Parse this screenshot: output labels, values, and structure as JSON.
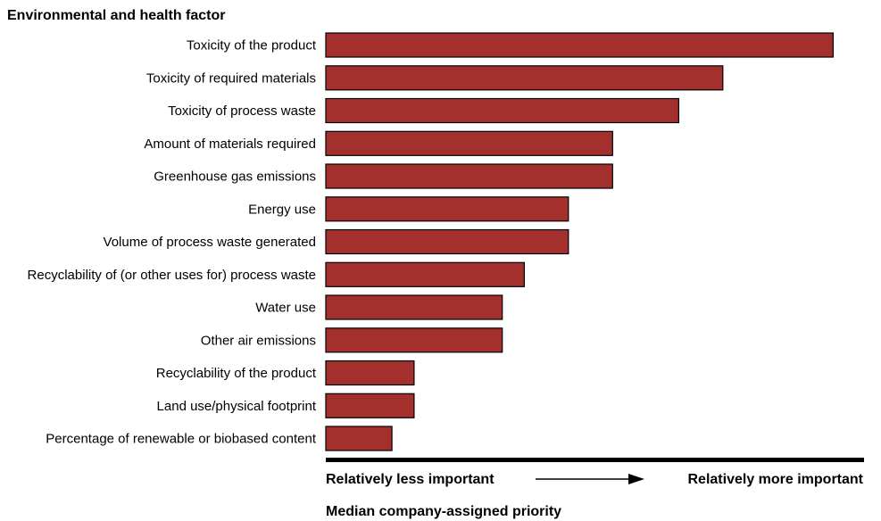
{
  "chart_data": {
    "type": "bar",
    "orientation": "horizontal",
    "title": "Environmental and health factor",
    "xlabel": "Median company-assigned priority",
    "scale_low_label": "Relatively less important",
    "scale_high_label": "Relatively more important",
    "categories": [
      "Toxicity of the product",
      "Toxicity of required materials",
      "Toxicity of process waste",
      "Amount of materials required",
      "Greenhouse gas emissions",
      "Energy use",
      "Volume of process waste generated",
      "Recyclability of (or other uses for) process waste",
      "Water use",
      "Other air emissions",
      "Recyclability of the product",
      "Land use/physical footprint",
      "Percentage of renewable or biobased content"
    ],
    "values": [
      11.5,
      9,
      8,
      6.5,
      6.5,
      5.5,
      5.5,
      4.5,
      4,
      4,
      2,
      2,
      1.5
    ],
    "xlim": [
      0,
      12.2
    ],
    "grid": false,
    "legend": "none",
    "bar_color": "#a3302d"
  }
}
